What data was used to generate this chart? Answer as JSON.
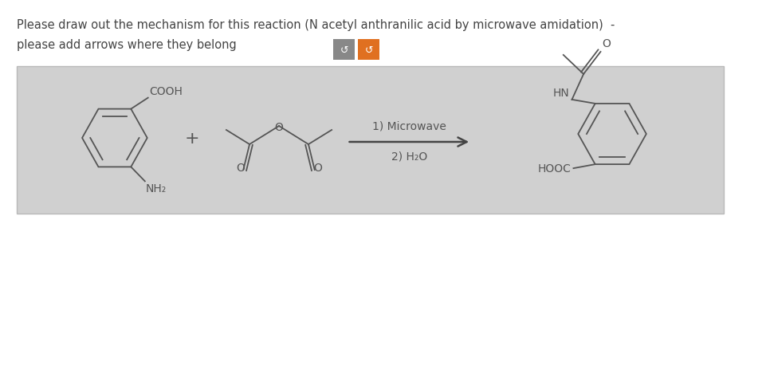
{
  "title_line1": "Please draw out the mechanism for this reaction (N acetyl anthranilic acid by microwave amidation)  -",
  "title_line2": "please add arrows where they belong",
  "title_fontsize": 11,
  "title_color": "#444444",
  "background_color": "#ffffff",
  "box_bg_color": "#d0d0d0",
  "box_edge_color": "#b8b8b8",
  "reaction_text_1": "1) Microwave",
  "reaction_text_2": "2) H₂O",
  "chem_color": "#555555",
  "arrow_color": "#444444",
  "button1_color": "#888888",
  "button2_color": "#e07020",
  "button_label": "↺",
  "plus_sign": "+"
}
